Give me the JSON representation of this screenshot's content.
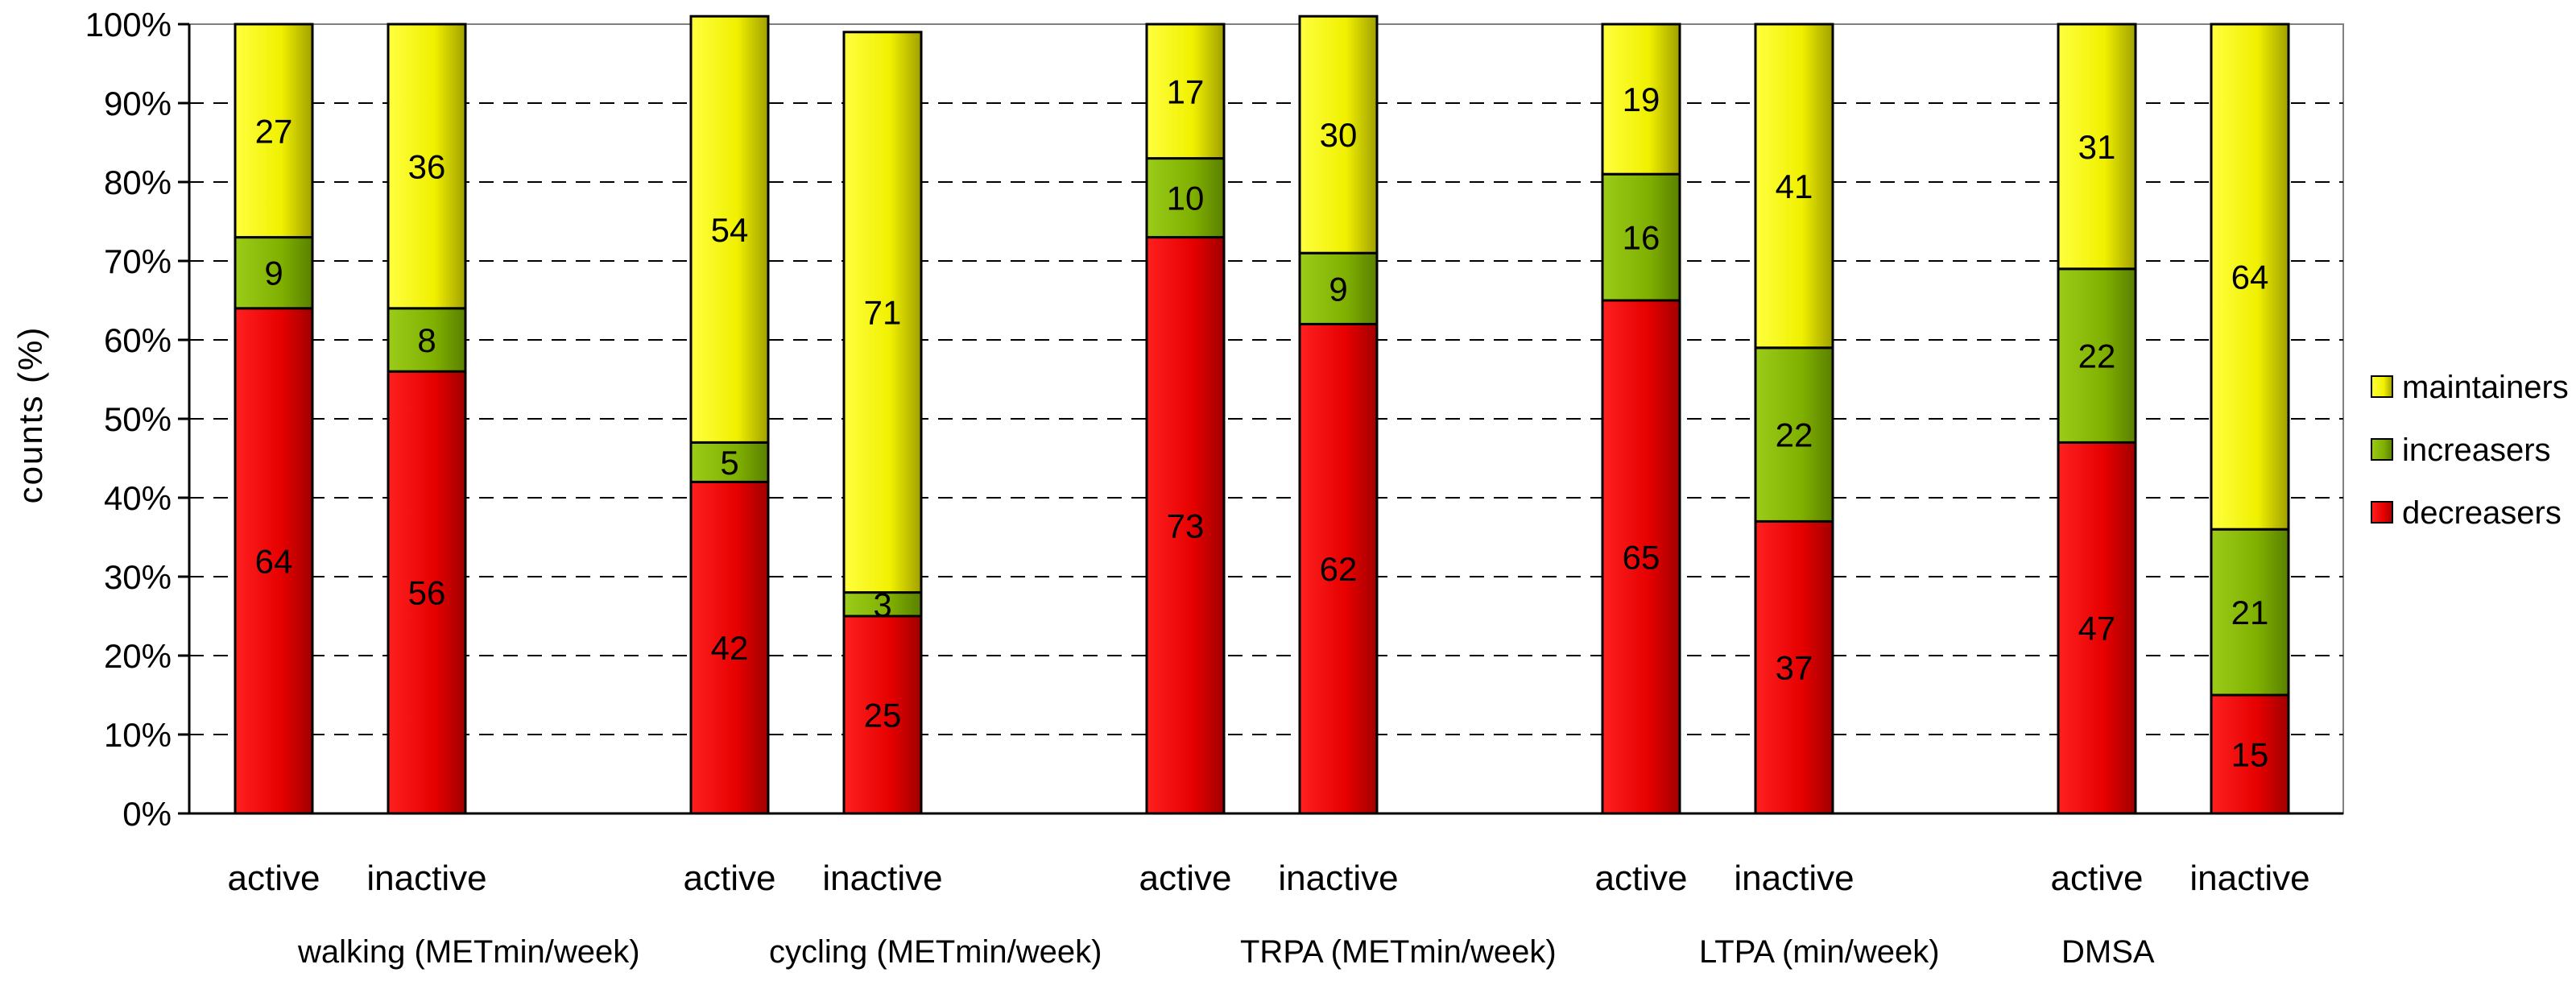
{
  "chart_data": {
    "type": "bar",
    "stacked": true,
    "percent": true,
    "title": "",
    "xlabel": "",
    "ylabel": "counts (%)",
    "ylim": [
      0,
      100
    ],
    "yticks": [
      "0%",
      "10%",
      "20%",
      "30%",
      "40%",
      "50%",
      "60%",
      "70%",
      "80%",
      "90%",
      "100%"
    ],
    "groups": [
      "walking (METmin/week)",
      "cycling (METmin/week)",
      "TRPA (METmin/week)",
      "LTPA (min/week)",
      "DMSA"
    ],
    "categories": [
      "active",
      "inactive",
      "active",
      "inactive",
      "active",
      "inactive",
      "active",
      "inactive",
      "active",
      "inactive"
    ],
    "series": [
      {
        "name": "decreasers",
        "color": "#e00000",
        "values": [
          64,
          56,
          42,
          25,
          73,
          62,
          65,
          37,
          47,
          15
        ]
      },
      {
        "name": "increasers",
        "color": "#7fb000",
        "values": [
          9,
          8,
          5,
          3,
          10,
          9,
          16,
          22,
          22,
          21
        ]
      },
      {
        "name": "maintainers",
        "color": "#f0f000",
        "values": [
          27,
          36,
          54,
          71,
          17,
          30,
          19,
          41,
          31,
          64
        ]
      }
    ],
    "legend": [
      "maintainers",
      "increasers",
      "decreasers"
    ],
    "legend_position": "right"
  }
}
